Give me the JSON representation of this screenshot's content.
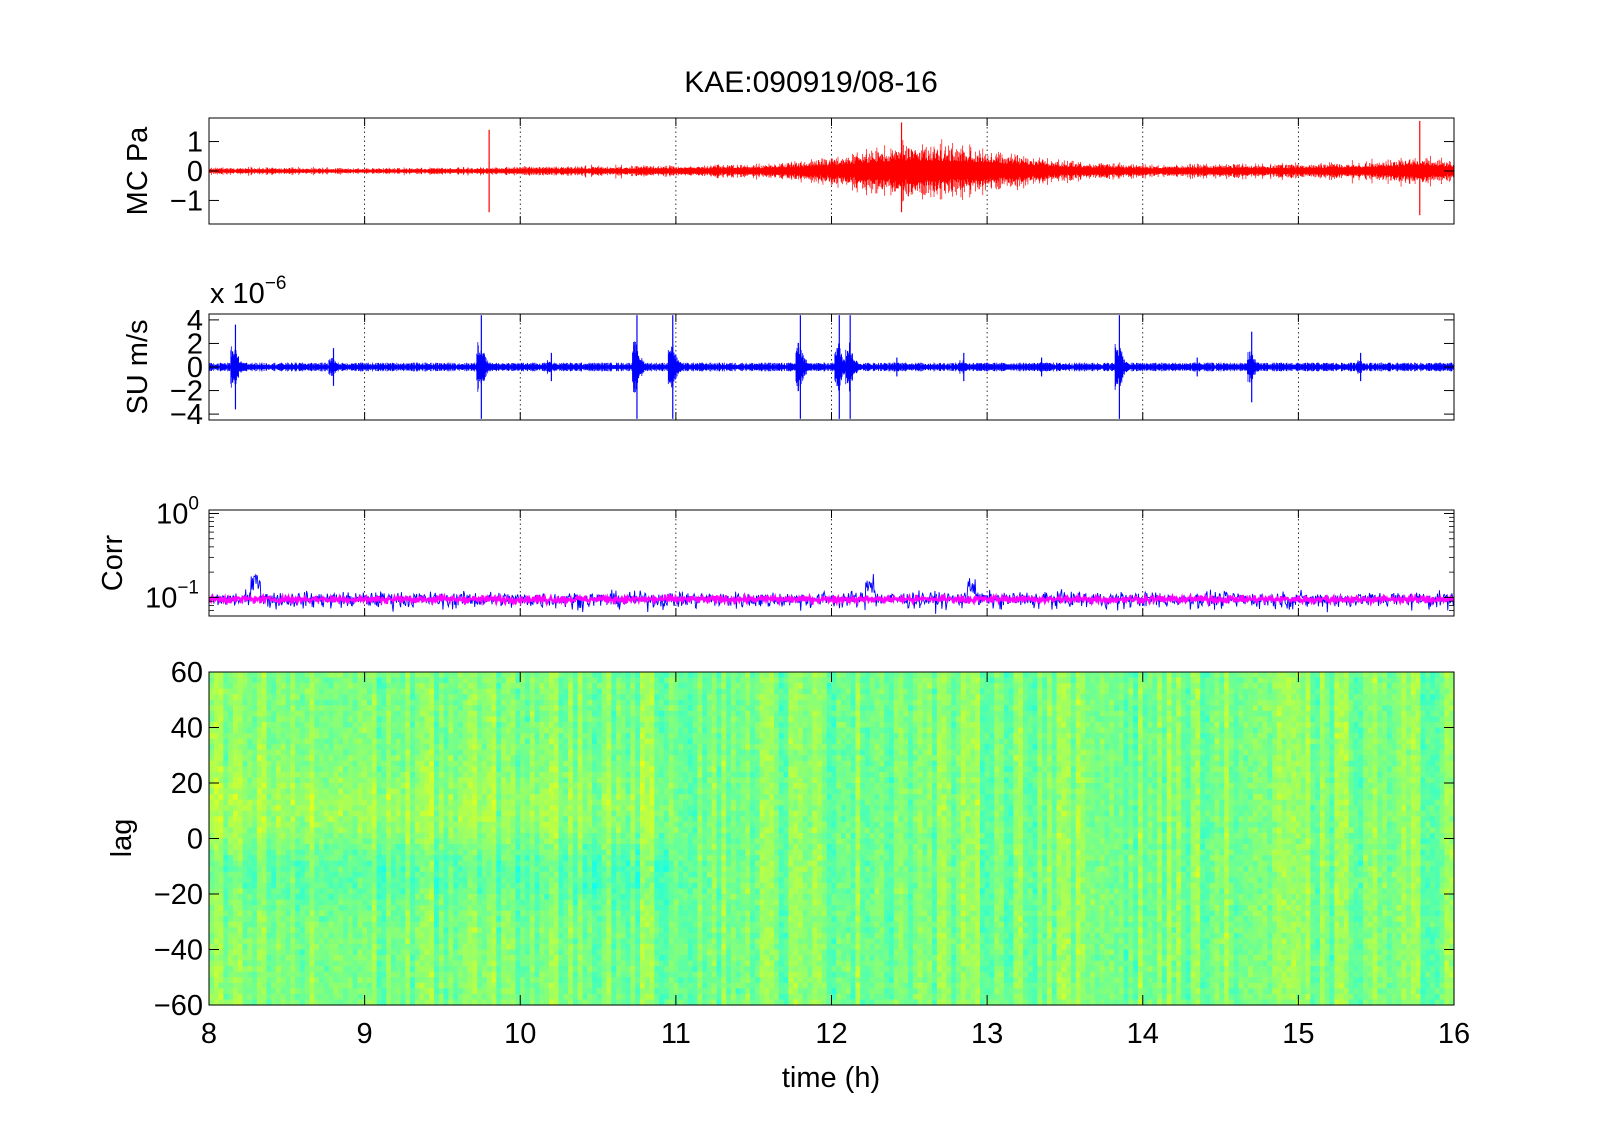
{
  "figure": {
    "title": "KAE:090919/08-16"
  },
  "chart_data": [
    {
      "type": "line",
      "name": "mc-pressure-panel",
      "ylabel": "MC Pa",
      "xlim": [
        8,
        16
      ],
      "ylim": [
        -1.8,
        1.8
      ],
      "yticks": [
        -1,
        0,
        1
      ],
      "ytick_labels": [
        "−1",
        "0",
        "1"
      ],
      "grid": "x-dotted",
      "series_color": "#ff0000",
      "envelope_hours": [
        8,
        8.5,
        9,
        9.5,
        9.8,
        10,
        10.5,
        11,
        11.5,
        11.8,
        12,
        12.2,
        12.5,
        12.8,
        13,
        13.2,
        13.5,
        14,
        14.5,
        15,
        15.3,
        15.6,
        15.8,
        16
      ],
      "envelope_amplitude": [
        0.12,
        0.12,
        0.1,
        0.12,
        0.12,
        0.15,
        0.18,
        0.2,
        0.25,
        0.35,
        0.5,
        0.75,
        1.0,
        0.9,
        0.8,
        0.6,
        0.35,
        0.22,
        0.25,
        0.25,
        0.3,
        0.4,
        0.55,
        0.35
      ],
      "spikes": [
        {
          "x": 9.8,
          "y": 1.4,
          "y_min": -1.4
        },
        {
          "x": 12.45,
          "y": 1.65,
          "y_min": -1.4
        },
        {
          "x": 15.78,
          "y": 1.7,
          "y_min": -1.5
        }
      ]
    },
    {
      "type": "line",
      "name": "su-velocity-panel",
      "ylabel": "SU m/s",
      "scale_note": "x 10",
      "scale_exponent": "−6",
      "xlim": [
        8,
        16
      ],
      "ylim": [
        -4.5,
        4.5
      ],
      "yticks": [
        -4,
        -2,
        0,
        2,
        4
      ],
      "ytick_labels": [
        "−4",
        "−2",
        "0",
        "2",
        "4"
      ],
      "grid": "x-dotted",
      "series_color": "#0000ff",
      "baseline_amplitude": 0.25,
      "events": [
        {
          "x": 8.17,
          "amp": 3.6
        },
        {
          "x": 8.8,
          "amp": 1.6
        },
        {
          "x": 9.75,
          "amp": 4.4
        },
        {
          "x": 10.2,
          "amp": 1.2
        },
        {
          "x": 10.75,
          "amp": 4.4
        },
        {
          "x": 10.98,
          "amp": 4.4
        },
        {
          "x": 11.8,
          "amp": 4.4
        },
        {
          "x": 12.05,
          "amp": 4.4
        },
        {
          "x": 12.12,
          "amp": 4.4
        },
        {
          "x": 12.42,
          "amp": 0.8
        },
        {
          "x": 12.85,
          "amp": 1.2
        },
        {
          "x": 13.35,
          "amp": 0.8
        },
        {
          "x": 13.85,
          "amp": 4.4
        },
        {
          "x": 14.35,
          "amp": 0.8
        },
        {
          "x": 14.7,
          "amp": 3.0
        },
        {
          "x": 15.4,
          "amp": 1.2
        }
      ]
    },
    {
      "type": "line",
      "name": "correlation-panel",
      "ylabel": "Corr",
      "xlim": [
        8,
        16
      ],
      "ylim": [
        0.06,
        1.1
      ],
      "yscale": "log",
      "ytick_labels": [
        {
          "value": 0.1,
          "base": "10",
          "exp": "−1"
        },
        {
          "value": 1,
          "base": "10",
          "exp": "0"
        }
      ],
      "grid": "x-dotted",
      "series": [
        {
          "color": "#0000ff",
          "center": 0.095,
          "spread": 0.02
        },
        {
          "color": "#ff00ff",
          "center": 0.095,
          "spread": 0.008
        }
      ],
      "peaks": [
        {
          "x": 8.3,
          "y": 0.2
        },
        {
          "x": 12.25,
          "y": 0.19
        },
        {
          "x": 12.9,
          "y": 0.17
        }
      ]
    },
    {
      "type": "heatmap",
      "name": "lag-heatmap-panel",
      "ylabel": "lag",
      "xlabel": "time (h)",
      "xlim": [
        8,
        16
      ],
      "ylim": [
        -60,
        60
      ],
      "xticks": [
        8,
        9,
        10,
        11,
        12,
        13,
        14,
        15,
        16
      ],
      "xtick_labels": [
        "8",
        "9",
        "10",
        "11",
        "12",
        "13",
        "14",
        "15",
        "16"
      ],
      "yticks": [
        -60,
        -40,
        -20,
        0,
        20,
        40,
        60
      ],
      "ytick_labels": [
        "−60",
        "−40",
        "−20",
        "0",
        "20",
        "40",
        "60"
      ],
      "colormap": "jet-mid",
      "dominant_colors": [
        "#8fe25a",
        "#3fd6b0",
        "#c6ef3a",
        "#5be09a"
      ],
      "value_range": [
        0.35,
        0.65
      ]
    }
  ]
}
